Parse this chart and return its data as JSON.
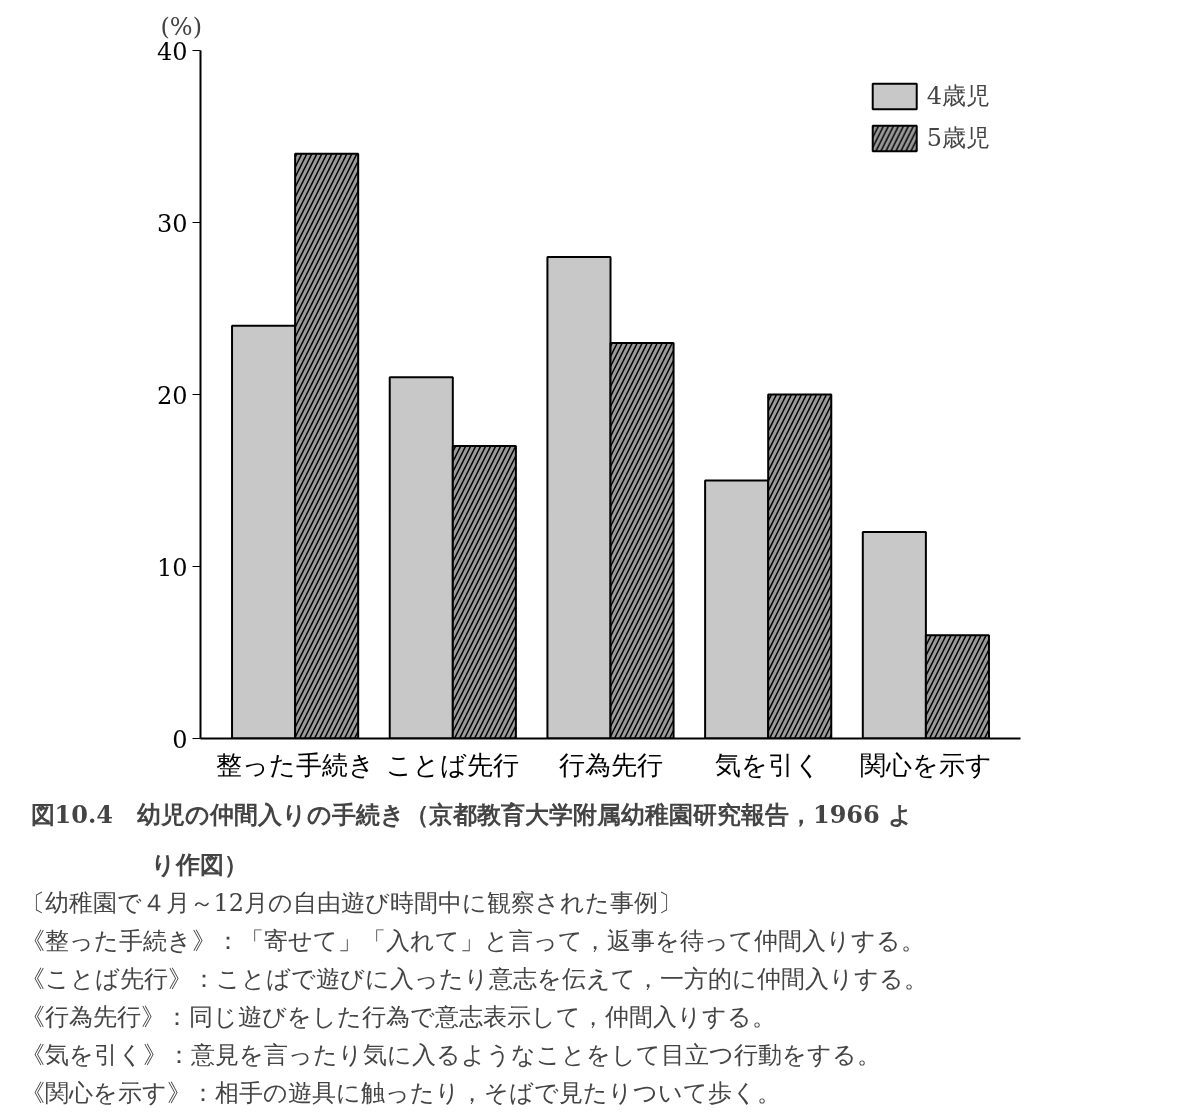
{
  "chart_data": {
    "type": "bar",
    "title": "図10.4　幼児の仲間入りの手続き（京都教育大学附属幼稚園研究報告，1966 より作図）",
    "ylabel": "(%)",
    "categories": [
      "整った手続き",
      "ことば先行",
      "行為先行",
      "気を引く",
      "関心を示す"
    ],
    "series": [
      {
        "name": "4歳児",
        "color": "#c8c8c8",
        "values": [
          24,
          21,
          28,
          15,
          12
        ]
      },
      {
        "name": "5歳児",
        "color": "#9a9a9a",
        "values": [
          34,
          17,
          23,
          20,
          6
        ]
      }
    ],
    "ylim": [
      0,
      40
    ],
    "yticks": [
      0,
      10,
      20,
      30,
      40
    ],
    "grid": false,
    "legend": "top right",
    "annotations": [
      "〔幼稚園で４月～12月の自由遊び時間中に観察された事例〕",
      "《整った手続き》：「寄せて」「入れて」と言って，返事を待って仲間入りする。",
      "《ことば先行》：ことばで遊びに入ったり意志を伝えて，一方的に仲間入りする。",
      "《行為先行》：同じ遊びをした行為で意志表示して，仲間入りする。",
      "《気を引く》：意見を言ったり気に入るようなことをして目立つ行動をする。",
      "《関心を示す》：相手の遊具に触ったり，そばで見たりついて歩く。"
    ]
  }
}
